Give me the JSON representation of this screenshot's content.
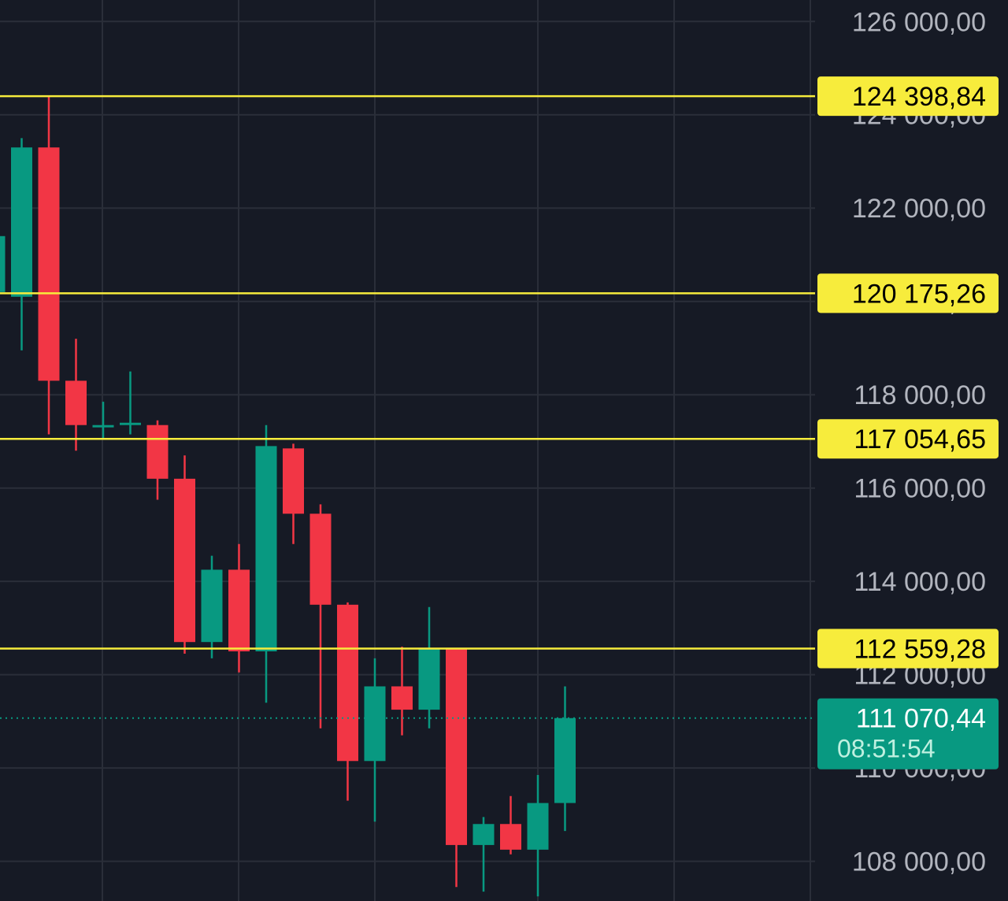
{
  "chart_data": {
    "type": "candlestick",
    "y_axis": {
      "ticks": [
        108000,
        110000,
        112000,
        114000,
        116000,
        118000,
        120000,
        122000,
        124000,
        126000
      ],
      "tick_labels": [
        "108 000,00",
        "110 000,00",
        "112 000,00",
        "114 000,00",
        "116 000,00",
        "118 000,00",
        "120 000,00",
        "122 000,00",
        "124 000,00",
        "126 000,00"
      ],
      "range": [
        107150,
        126460
      ]
    },
    "grid": true,
    "candles": [
      {
        "open": 120200,
        "high": 121400,
        "low": 118700,
        "close": 121400
      },
      {
        "open": 120100,
        "high": 123500,
        "low": 118950,
        "close": 123300
      },
      {
        "open": 123300,
        "high": 124400,
        "low": 117150,
        "close": 118300
      },
      {
        "open": 118300,
        "high": 119200,
        "low": 116800,
        "close": 117350
      },
      {
        "open": 117300,
        "high": 117850,
        "low": 117050,
        "close": 117350
      },
      {
        "open": 117350,
        "high": 118500,
        "low": 117150,
        "close": 117400
      },
      {
        "open": 117350,
        "high": 117450,
        "low": 115750,
        "close": 116200
      },
      {
        "open": 116200,
        "high": 116700,
        "low": 112450,
        "close": 112700
      },
      {
        "open": 112700,
        "high": 114550,
        "low": 112350,
        "close": 114250
      },
      {
        "open": 114250,
        "high": 114800,
        "low": 112050,
        "close": 112500
      },
      {
        "open": 112500,
        "high": 117350,
        "low": 111400,
        "close": 116900
      },
      {
        "open": 116850,
        "high": 116950,
        "low": 114800,
        "close": 115450
      },
      {
        "open": 115450,
        "high": 115650,
        "low": 110850,
        "close": 113500
      },
      {
        "open": 113500,
        "high": 113550,
        "low": 109300,
        "close": 110150
      },
      {
        "open": 110150,
        "high": 112350,
        "low": 108850,
        "close": 111750
      },
      {
        "open": 111750,
        "high": 112600,
        "low": 110700,
        "close": 111250
      },
      {
        "open": 111250,
        "high": 113450,
        "low": 110850,
        "close": 112550
      },
      {
        "open": 112550,
        "high": 112550,
        "low": 107450,
        "close": 108350
      },
      {
        "open": 108350,
        "high": 108950,
        "low": 107350,
        "close": 108800
      },
      {
        "open": 108800,
        "high": 109400,
        "low": 108150,
        "close": 108250
      },
      {
        "open": 108250,
        "high": 109850,
        "low": 107250,
        "close": 109250
      },
      {
        "open": 109250,
        "high": 111750,
        "low": 108650,
        "close": 111070
      }
    ],
    "levels": [
      {
        "value": 124398.84,
        "label": "124 398,84"
      },
      {
        "value": 120175.26,
        "label": "120 175,26"
      },
      {
        "value": 117054.65,
        "label": "117 054,65"
      },
      {
        "value": 112559.28,
        "label": "112 559,28"
      }
    ],
    "current_price": {
      "value": 111070.44,
      "label": "111 070,44",
      "countdown": "08:51:54"
    }
  },
  "colors": {
    "background": "#161a25",
    "grid": "#2a2e39",
    "up": "#089981",
    "down": "#f23645",
    "level": "#f7ec3c",
    "axis_text": "#b2b5be",
    "current_line": "#089981"
  }
}
